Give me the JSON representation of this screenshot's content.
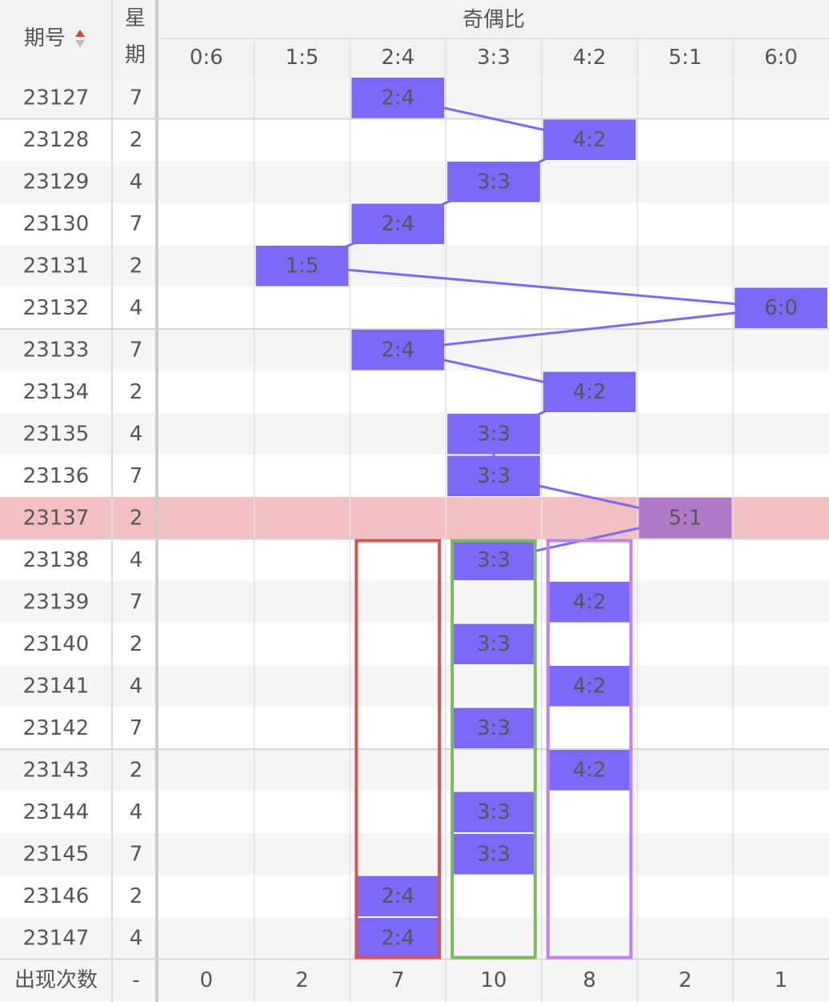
{
  "header": {
    "issue": "期号",
    "week": "星期",
    "group": "奇偶比",
    "columns": [
      "0:6",
      "1:5",
      "2:4",
      "3:3",
      "4:2",
      "5:1",
      "6:0"
    ]
  },
  "rows": [
    {
      "issue": "23127",
      "week": "7",
      "ratio": "2:4"
    },
    {
      "issue": "23128",
      "week": "2",
      "ratio": "4:2"
    },
    {
      "issue": "23129",
      "week": "4",
      "ratio": "3:3"
    },
    {
      "issue": "23130",
      "week": "7",
      "ratio": "2:4"
    },
    {
      "issue": "23131",
      "week": "2",
      "ratio": "1:5"
    },
    {
      "issue": "23132",
      "week": "4",
      "ratio": "6:0"
    },
    {
      "issue": "23133",
      "week": "7",
      "ratio": "2:4"
    },
    {
      "issue": "23134",
      "week": "2",
      "ratio": "4:2"
    },
    {
      "issue": "23135",
      "week": "4",
      "ratio": "3:3"
    },
    {
      "issue": "23136",
      "week": "7",
      "ratio": "3:3"
    },
    {
      "issue": "23137",
      "week": "2",
      "ratio": "5:1"
    },
    {
      "issue": "23138",
      "week": "4",
      "ratio": "3:3"
    },
    {
      "issue": "23139",
      "week": "7",
      "ratio": "4:2"
    },
    {
      "issue": "23140",
      "week": "2",
      "ratio": "3:3"
    },
    {
      "issue": "23141",
      "week": "4",
      "ratio": "4:2"
    },
    {
      "issue": "23142",
      "week": "7",
      "ratio": "3:3"
    },
    {
      "issue": "23143",
      "week": "2",
      "ratio": "4:2"
    },
    {
      "issue": "23144",
      "week": "4",
      "ratio": "3:3"
    },
    {
      "issue": "23145",
      "week": "7",
      "ratio": "3:3"
    },
    {
      "issue": "23146",
      "week": "2",
      "ratio": "2:4"
    },
    {
      "issue": "23147",
      "week": "4",
      "ratio": "2:4"
    }
  ],
  "footer": {
    "label": "出现次数",
    "week": "-",
    "counts": [
      "0",
      "2",
      "7",
      "10",
      "8",
      "2",
      "1"
    ]
  }
}
